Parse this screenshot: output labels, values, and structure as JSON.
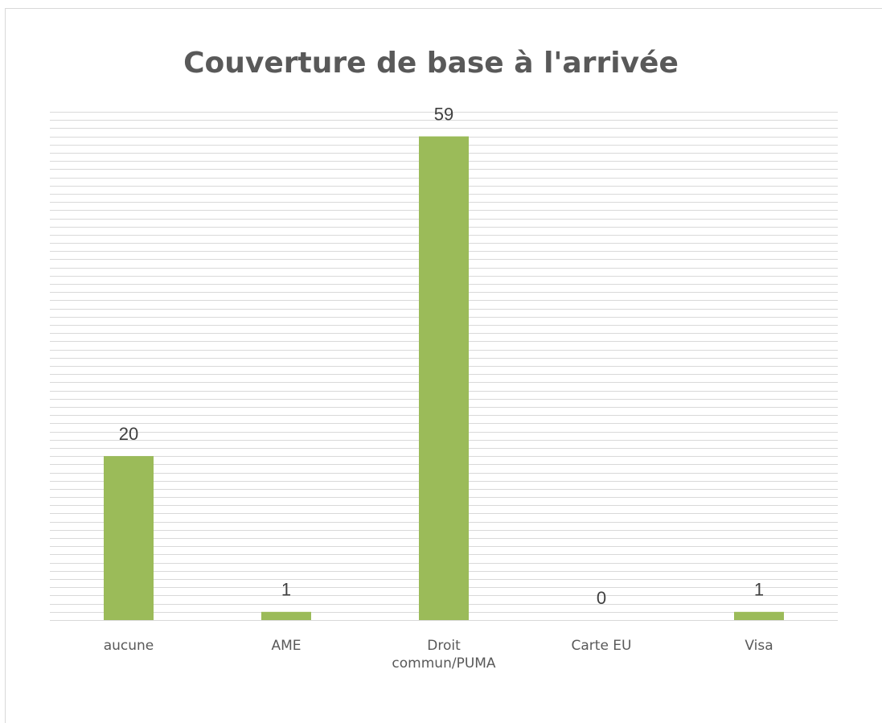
{
  "chart_data": {
    "type": "bar",
    "title": "Couverture de base à l'arrivée",
    "categories": [
      "aucune",
      "AME",
      "Droit commun/PUMA",
      "Carte EU",
      "Visa"
    ],
    "values": [
      20,
      1,
      59,
      0,
      1
    ],
    "color": "#9bbb59",
    "ylim": [
      0,
      62
    ],
    "yticks": [
      0,
      1,
      2,
      3,
      4,
      5,
      6,
      7,
      8,
      9,
      10,
      11,
      12,
      13,
      14,
      15,
      16,
      17,
      18,
      19,
      20,
      21,
      22,
      23,
      24,
      25,
      26,
      27,
      28,
      29,
      30,
      31,
      32,
      33,
      34,
      35,
      36,
      37,
      38,
      39,
      40,
      41,
      42,
      43,
      44,
      45,
      46,
      47,
      48,
      49,
      50,
      51,
      52,
      53,
      54,
      55,
      56,
      57,
      58,
      59,
      60,
      61,
      62
    ],
    "grid": true
  }
}
